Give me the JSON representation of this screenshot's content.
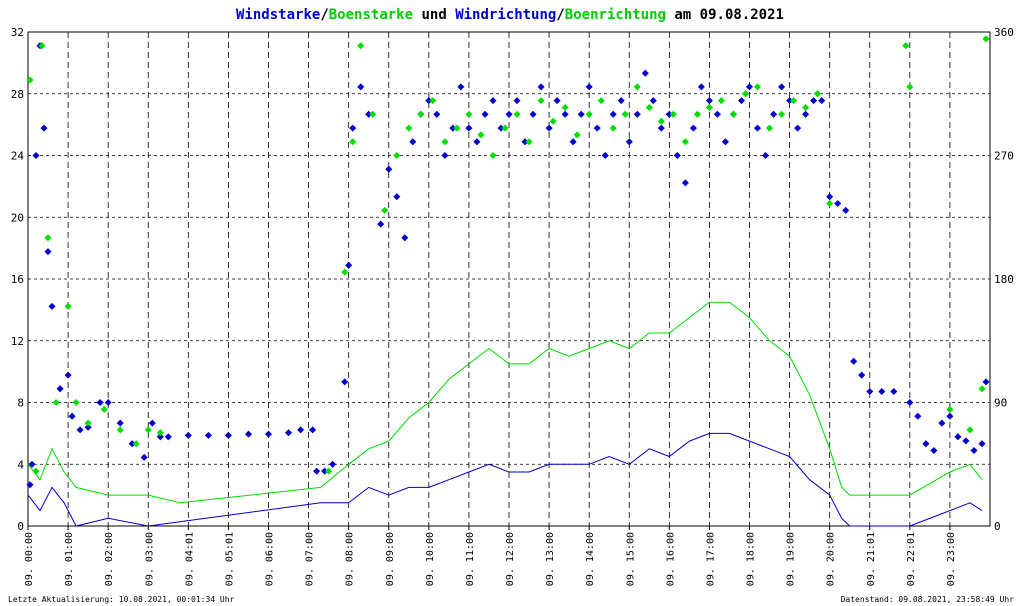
{
  "chart_data": {
    "type": "scatter",
    "title_parts": [
      {
        "text": "Windstarke",
        "color": "#0000cc"
      },
      {
        "text": "/",
        "color": "#000000"
      },
      {
        "text": "Boenstarke",
        "color": "#00cc00"
      },
      {
        "text": " und ",
        "color": "#000000"
      },
      {
        "text": "Windrichtung",
        "color": "#0000cc"
      },
      {
        "text": "/",
        "color": "#000000"
      },
      {
        "text": "Boenrichtung",
        "color": "#00cc00"
      },
      {
        "text": " am 09.08.2021",
        "color": "#000000"
      }
    ],
    "y_left": {
      "min": 0,
      "max": 32,
      "ticks": [
        "0",
        "4",
        "8",
        "12",
        "16",
        "20",
        "24",
        "28",
        "32"
      ]
    },
    "y_right": {
      "min": 0,
      "max": 360,
      "ticks": [
        "0",
        "90",
        "180",
        "270",
        "360"
      ]
    },
    "x_range_hours": [
      0,
      24
    ],
    "x_ticks": [
      {
        "h": 0,
        "label": "09. 00:00"
      },
      {
        "h": 1,
        "label": "09. 01:00"
      },
      {
        "h": 2,
        "label": "09. 02:00"
      },
      {
        "h": 3,
        "label": "09. 03:00"
      },
      {
        "h": 4,
        "label": "09. 04:01"
      },
      {
        "h": 5,
        "label": "09. 05:01"
      },
      {
        "h": 6,
        "label": "09. 06:00"
      },
      {
        "h": 7,
        "label": "09. 07:00"
      },
      {
        "h": 8,
        "label": "09. 08:00"
      },
      {
        "h": 9,
        "label": "09. 09:00"
      },
      {
        "h": 10,
        "label": "09. 10:00"
      },
      {
        "h": 11,
        "label": "09. 11:00"
      },
      {
        "h": 12,
        "label": "09. 12:00"
      },
      {
        "h": 13,
        "label": "09. 13:00"
      },
      {
        "h": 14,
        "label": "09. 14:00"
      },
      {
        "h": 15,
        "label": "09. 15:00"
      },
      {
        "h": 16,
        "label": "09. 16:00"
      },
      {
        "h": 17,
        "label": "09. 17:00"
      },
      {
        "h": 18,
        "label": "09. 18:00"
      },
      {
        "h": 19,
        "label": "09. 19:00"
      },
      {
        "h": 20,
        "label": "09. 20:00"
      },
      {
        "h": 21,
        "label": "09. 21:01"
      },
      {
        "h": 22,
        "label": "09. 22:01"
      },
      {
        "h": 23,
        "label": "09. 23:00"
      }
    ],
    "grid": true,
    "footer_left": "Letzte Aktualisierung: 10.08.2021, 00:01:34 Uhr",
    "footer_right": "Datenstand: 09.08.2021, 23:58:49 Uhr",
    "colors": {
      "wind": "#0000cc",
      "gust": "#00dd00",
      "grid": "#000000"
    },
    "series": [
      {
        "key": "windstarke",
        "type": "line",
        "color": "#0000cc",
        "axis": "left",
        "points": [
          [
            0.0,
            2.0
          ],
          [
            0.3,
            1.0
          ],
          [
            0.6,
            2.5
          ],
          [
            0.9,
            1.5
          ],
          [
            1.2,
            0.0
          ],
          [
            2.0,
            0.5
          ],
          [
            3.0,
            0.0
          ],
          [
            7.3,
            1.5
          ],
          [
            8.0,
            1.5
          ],
          [
            8.5,
            2.5
          ],
          [
            9.0,
            2.0
          ],
          [
            9.5,
            2.5
          ],
          [
            10.0,
            2.5
          ],
          [
            10.5,
            3.0
          ],
          [
            11.0,
            3.5
          ],
          [
            11.5,
            4.0
          ],
          [
            12.0,
            3.5
          ],
          [
            12.5,
            3.5
          ],
          [
            13.0,
            4.0
          ],
          [
            13.5,
            4.0
          ],
          [
            14.0,
            4.0
          ],
          [
            14.5,
            4.5
          ],
          [
            15.0,
            4.0
          ],
          [
            15.5,
            5.0
          ],
          [
            16.0,
            4.5
          ],
          [
            16.5,
            5.5
          ],
          [
            17.0,
            6.0
          ],
          [
            17.5,
            6.0
          ],
          [
            18.0,
            5.5
          ],
          [
            18.5,
            5.0
          ],
          [
            19.0,
            4.5
          ],
          [
            19.5,
            3.0
          ],
          [
            20.0,
            2.0
          ],
          [
            20.3,
            0.5
          ],
          [
            20.5,
            0.0
          ],
          [
            22.0,
            0.0
          ],
          [
            23.0,
            1.0
          ],
          [
            23.5,
            1.5
          ],
          [
            23.8,
            1.0
          ]
        ]
      },
      {
        "key": "boenstarke",
        "type": "line",
        "color": "#00dd00",
        "axis": "left",
        "points": [
          [
            0.0,
            4.0
          ],
          [
            0.3,
            3.0
          ],
          [
            0.6,
            5.0
          ],
          [
            0.9,
            3.5
          ],
          [
            1.2,
            2.5
          ],
          [
            2.0,
            2.0
          ],
          [
            3.0,
            2.0
          ],
          [
            3.8,
            1.5
          ],
          [
            7.3,
            2.5
          ],
          [
            8.0,
            4.0
          ],
          [
            8.5,
            5.0
          ],
          [
            9.0,
            5.5
          ],
          [
            9.5,
            7.0
          ],
          [
            10.0,
            8.0
          ],
          [
            10.5,
            9.5
          ],
          [
            11.0,
            10.5
          ],
          [
            11.5,
            11.5
          ],
          [
            12.0,
            10.5
          ],
          [
            12.5,
            10.5
          ],
          [
            13.0,
            11.5
          ],
          [
            13.5,
            11.0
          ],
          [
            14.0,
            11.5
          ],
          [
            14.5,
            12.0
          ],
          [
            15.0,
            11.5
          ],
          [
            15.5,
            12.5
          ],
          [
            16.0,
            12.5
          ],
          [
            16.5,
            13.5
          ],
          [
            17.0,
            14.5
          ],
          [
            17.5,
            14.5
          ],
          [
            18.0,
            13.5
          ],
          [
            18.5,
            12.0
          ],
          [
            19.0,
            11.0
          ],
          [
            19.5,
            8.5
          ],
          [
            20.0,
            5.0
          ],
          [
            20.3,
            2.5
          ],
          [
            20.5,
            2.0
          ],
          [
            21.5,
            2.0
          ],
          [
            22.0,
            2.0
          ],
          [
            23.0,
            3.5
          ],
          [
            23.5,
            4.0
          ],
          [
            23.8,
            3.0
          ]
        ]
      },
      {
        "key": "windrichtung",
        "type": "scatter",
        "color": "#0000cc",
        "axis": "right",
        "points": [
          [
            0.05,
            30
          ],
          [
            0.1,
            45
          ],
          [
            0.2,
            270
          ],
          [
            0.3,
            350
          ],
          [
            0.4,
            290
          ],
          [
            0.5,
            200
          ],
          [
            0.6,
            160
          ],
          [
            0.8,
            100
          ],
          [
            1.0,
            110
          ],
          [
            1.1,
            80
          ],
          [
            1.3,
            70
          ],
          [
            1.5,
            72
          ],
          [
            1.8,
            90
          ],
          [
            2.0,
            90
          ],
          [
            2.3,
            75
          ],
          [
            2.6,
            60
          ],
          [
            2.9,
            50
          ],
          [
            3.1,
            75
          ],
          [
            3.3,
            65
          ],
          [
            3.5,
            65
          ],
          [
            4.0,
            66
          ],
          [
            4.5,
            66
          ],
          [
            5.0,
            66
          ],
          [
            5.5,
            67
          ],
          [
            6.0,
            67
          ],
          [
            6.5,
            68
          ],
          [
            6.8,
            70
          ],
          [
            7.1,
            70
          ],
          [
            7.2,
            40
          ],
          [
            7.4,
            40
          ],
          [
            7.6,
            45
          ],
          [
            7.9,
            105
          ],
          [
            8.0,
            190
          ],
          [
            8.1,
            290
          ],
          [
            8.3,
            320
          ],
          [
            8.5,
            300
          ],
          [
            8.8,
            220
          ],
          [
            9.0,
            260
          ],
          [
            9.2,
            240
          ],
          [
            9.4,
            210
          ],
          [
            9.6,
            280
          ],
          [
            9.8,
            300
          ],
          [
            10.0,
            310
          ],
          [
            10.2,
            300
          ],
          [
            10.4,
            270
          ],
          [
            10.6,
            290
          ],
          [
            10.8,
            320
          ],
          [
            11.0,
            290
          ],
          [
            11.2,
            280
          ],
          [
            11.4,
            300
          ],
          [
            11.6,
            310
          ],
          [
            11.8,
            290
          ],
          [
            12.0,
            300
          ],
          [
            12.2,
            310
          ],
          [
            12.4,
            280
          ],
          [
            12.6,
            300
          ],
          [
            12.8,
            320
          ],
          [
            13.0,
            290
          ],
          [
            13.2,
            310
          ],
          [
            13.4,
            300
          ],
          [
            13.6,
            280
          ],
          [
            13.8,
            300
          ],
          [
            14.0,
            320
          ],
          [
            14.2,
            290
          ],
          [
            14.4,
            270
          ],
          [
            14.6,
            300
          ],
          [
            14.8,
            310
          ],
          [
            15.0,
            280
          ],
          [
            15.2,
            300
          ],
          [
            15.4,
            330
          ],
          [
            15.6,
            310
          ],
          [
            15.8,
            290
          ],
          [
            16.0,
            300
          ],
          [
            16.2,
            270
          ],
          [
            16.4,
            250
          ],
          [
            16.6,
            290
          ],
          [
            16.8,
            320
          ],
          [
            17.0,
            310
          ],
          [
            17.2,
            300
          ],
          [
            17.4,
            280
          ],
          [
            17.6,
            300
          ],
          [
            17.8,
            310
          ],
          [
            18.0,
            320
          ],
          [
            18.2,
            290
          ],
          [
            18.4,
            270
          ],
          [
            18.6,
            300
          ],
          [
            18.8,
            320
          ],
          [
            19.0,
            310
          ],
          [
            19.2,
            290
          ],
          [
            19.4,
            300
          ],
          [
            19.6,
            310
          ],
          [
            19.8,
            310
          ],
          [
            20.0,
            240
          ],
          [
            20.2,
            235
          ],
          [
            20.4,
            230
          ],
          [
            20.6,
            120
          ],
          [
            20.8,
            110
          ],
          [
            21.0,
            98
          ],
          [
            21.3,
            98
          ],
          [
            21.6,
            98
          ],
          [
            22.0,
            90
          ],
          [
            22.2,
            80
          ],
          [
            22.4,
            60
          ],
          [
            22.6,
            55
          ],
          [
            22.8,
            75
          ],
          [
            23.0,
            80
          ],
          [
            23.2,
            65
          ],
          [
            23.4,
            62
          ],
          [
            23.6,
            55
          ],
          [
            23.8,
            60
          ],
          [
            23.9,
            105
          ]
        ]
      },
      {
        "key": "boenrichtung",
        "type": "scatter",
        "color": "#00dd00",
        "axis": "right",
        "points": [
          [
            0.05,
            325
          ],
          [
            0.2,
            40
          ],
          [
            0.35,
            350
          ],
          [
            0.5,
            210
          ],
          [
            0.7,
            90
          ],
          [
            1.0,
            160
          ],
          [
            1.2,
            90
          ],
          [
            1.5,
            75
          ],
          [
            1.9,
            85
          ],
          [
            2.3,
            70
          ],
          [
            2.7,
            60
          ],
          [
            3.0,
            70
          ],
          [
            3.3,
            68
          ],
          [
            7.5,
            40
          ],
          [
            7.9,
            185
          ],
          [
            8.1,
            280
          ],
          [
            8.3,
            350
          ],
          [
            8.6,
            300
          ],
          [
            8.9,
            230
          ],
          [
            9.2,
            270
          ],
          [
            9.5,
            290
          ],
          [
            9.8,
            300
          ],
          [
            10.1,
            310
          ],
          [
            10.4,
            280
          ],
          [
            10.7,
            290
          ],
          [
            11.0,
            300
          ],
          [
            11.3,
            285
          ],
          [
            11.6,
            270
          ],
          [
            11.9,
            290
          ],
          [
            12.2,
            300
          ],
          [
            12.5,
            280
          ],
          [
            12.8,
            310
          ],
          [
            13.1,
            295
          ],
          [
            13.4,
            305
          ],
          [
            13.7,
            285
          ],
          [
            14.0,
            300
          ],
          [
            14.3,
            310
          ],
          [
            14.6,
            290
          ],
          [
            14.9,
            300
          ],
          [
            15.2,
            320
          ],
          [
            15.5,
            305
          ],
          [
            15.8,
            295
          ],
          [
            16.1,
            300
          ],
          [
            16.4,
            280
          ],
          [
            16.7,
            300
          ],
          [
            17.0,
            305
          ],
          [
            17.3,
            310
          ],
          [
            17.6,
            300
          ],
          [
            17.9,
            315
          ],
          [
            18.2,
            320
          ],
          [
            18.5,
            290
          ],
          [
            18.8,
            300
          ],
          [
            19.1,
            310
          ],
          [
            19.4,
            305
          ],
          [
            19.7,
            315
          ],
          [
            20.0,
            235
          ],
          [
            21.9,
            350
          ],
          [
            22.0,
            320
          ],
          [
            23.0,
            85
          ],
          [
            23.5,
            70
          ],
          [
            23.8,
            100
          ],
          [
            23.9,
            355
          ]
        ]
      }
    ]
  }
}
